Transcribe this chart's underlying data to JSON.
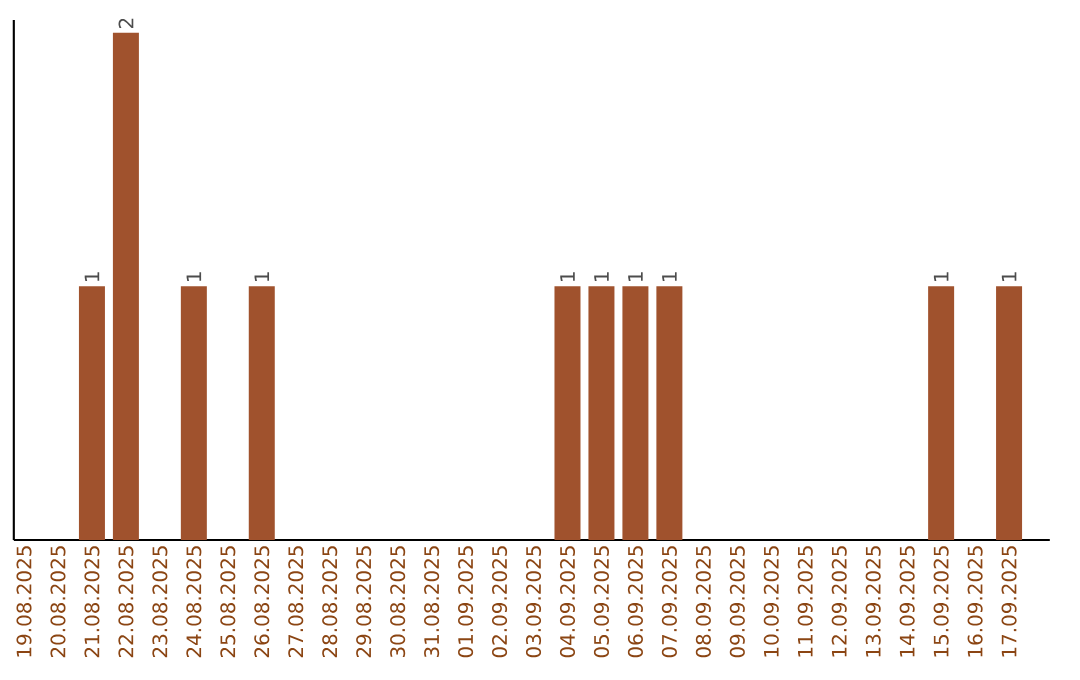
{
  "chart_data": {
    "type": "bar",
    "categories": [
      "19.08.2025",
      "20.08.2025",
      "21.08.2025",
      "22.08.2025",
      "23.08.2025",
      "24.08.2025",
      "25.08.2025",
      "26.08.2025",
      "27.08.2025",
      "28.08.2025",
      "29.08.2025",
      "30.08.2025",
      "31.08.2025",
      "01.09.2025",
      "02.09.2025",
      "03.09.2025",
      "04.09.2025",
      "05.09.2025",
      "06.09.2025",
      "07.09.2025",
      "08.09.2025",
      "09.09.2025",
      "10.09.2025",
      "11.09.2025",
      "12.09.2025",
      "13.09.2025",
      "14.09.2025",
      "15.09.2025",
      "16.09.2025",
      "17.09.2025"
    ],
    "values": [
      0,
      0,
      1,
      2,
      0,
      1,
      0,
      1,
      0,
      0,
      0,
      0,
      0,
      0,
      0,
      0,
      1,
      1,
      1,
      1,
      0,
      0,
      0,
      0,
      0,
      0,
      0,
      1,
      0,
      1
    ],
    "value_labels": [
      null,
      null,
      "1",
      "2",
      null,
      "1",
      null,
      "1",
      null,
      null,
      null,
      null,
      null,
      null,
      null,
      null,
      "1",
      "1",
      "1",
      "1",
      null,
      null,
      null,
      null,
      null,
      null,
      null,
      "1",
      null,
      "1"
    ],
    "color": "#a0522d",
    "ylim": [
      0,
      2.05
    ],
    "tick_labels": "x"
  }
}
